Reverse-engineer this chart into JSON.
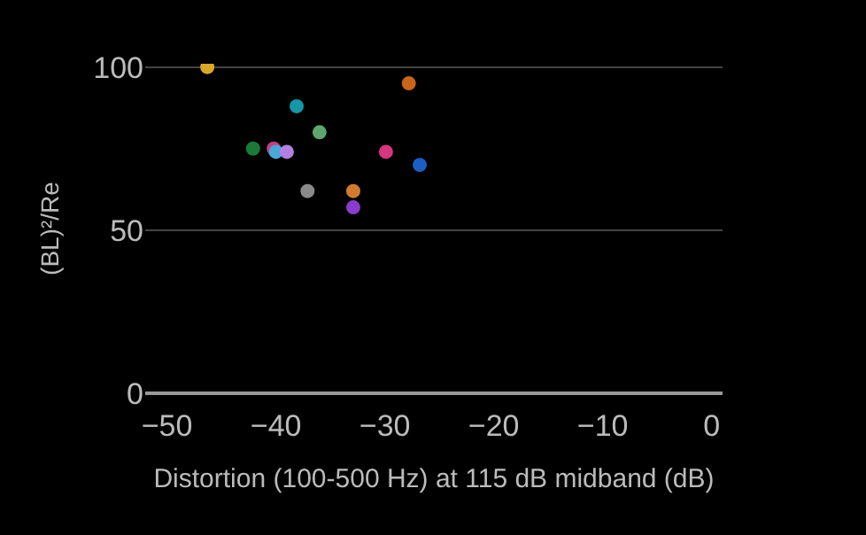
{
  "chart_data": {
    "type": "scatter",
    "xlabel": "Distortion (100-500 Hz) at 115 dB midband (dB)",
    "ylabel": "(BL)²/Re",
    "x": [
      -46.3,
      -27.8,
      -38.1,
      -36.0,
      -42.1,
      -40.2,
      -40.0,
      -39.0,
      -29.9,
      -26.8,
      -37.1,
      -32.9,
      -32.9
    ],
    "values": [
      100,
      95,
      88,
      80,
      75,
      75,
      74,
      74,
      74,
      70,
      62,
      62,
      57
    ],
    "colors": [
      "#d9a92b",
      "#c8651a",
      "#1597a8",
      "#5fa56e",
      "#1a7a3a",
      "#c43f86",
      "#4aa8d8",
      "#b37fe0",
      "#d6357f",
      "#1c5fc4",
      "#8a8a8a",
      "#d07a30",
      "#8a3ccc"
    ],
    "xlim": [
      -52,
      1
    ],
    "xticks": [
      -50,
      -40,
      -30,
      -20,
      -10,
      0
    ],
    "ylim": [
      0,
      101
    ],
    "yticks": [
      0,
      50,
      100
    ],
    "grid": "y",
    "marker": "circle",
    "legend": false
  }
}
